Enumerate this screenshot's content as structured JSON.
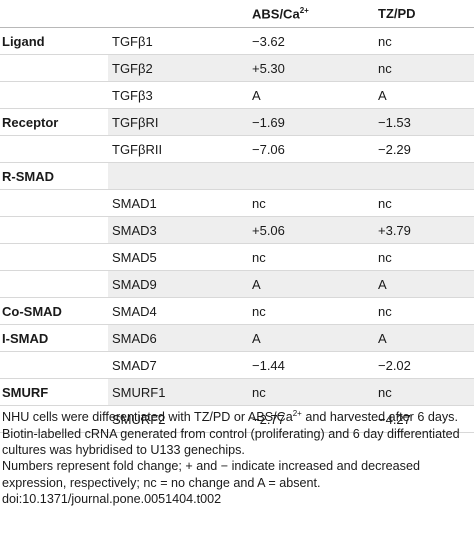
{
  "header": {
    "col_abs_text": "ABS/Ca",
    "col_abs_sup": "2+",
    "col_tz": "TZ/PD"
  },
  "rows": [
    {
      "group": "Ligand",
      "gene": "TGFβ1",
      "abs": "−3.62",
      "tz": "nc"
    },
    {
      "group": "",
      "gene": "TGFβ2",
      "abs": "+5.30",
      "tz": "nc"
    },
    {
      "group": "",
      "gene": "TGFβ3",
      "abs": "A",
      "tz": "A"
    },
    {
      "group": "Receptor",
      "gene": "TGFβRI",
      "abs": "−1.69",
      "tz": "−1.53"
    },
    {
      "group": "",
      "gene": "TGFβRII",
      "abs": "−7.06",
      "tz": "−2.29"
    },
    {
      "group": "R-SMAD",
      "gene": "",
      "abs": "",
      "tz": ""
    },
    {
      "group": "",
      "gene": "SMAD1",
      "abs": "nc",
      "tz": "nc"
    },
    {
      "group": "",
      "gene": "SMAD3",
      "abs": "+5.06",
      "tz": "+3.79"
    },
    {
      "group": "",
      "gene": "SMAD5",
      "abs": "nc",
      "tz": "nc"
    },
    {
      "group": "",
      "gene": "SMAD9",
      "abs": "A",
      "tz": "A"
    },
    {
      "group": "Co-SMAD",
      "gene": "SMAD4",
      "abs": "nc",
      "tz": "nc"
    },
    {
      "group": "I-SMAD",
      "gene": "SMAD6",
      "abs": "A",
      "tz": "A"
    },
    {
      "group": "",
      "gene": "SMAD7",
      "abs": "−1.44",
      "tz": "−2.02"
    },
    {
      "group": "SMURF",
      "gene": "SMURF1",
      "abs": "nc",
      "tz": "nc"
    },
    {
      "group": "",
      "gene": "SMURF2",
      "abs": "−2.77",
      "tz": "−4.27"
    }
  ],
  "notes": {
    "line1_a": "NHU cells were differentiated with TZ/PD or ABS/Ca",
    "line1_sup": "2+",
    "line1_b": " and harvested after 6 days. Biotin-labelled cRNA generated from control (proliferating) and 6 day differentiated cultures was hybridised to U133 genechips.",
    "line2": "Numbers represent fold change; + and − indicate increased and decreased expression, respectively; nc = no change and A = absent.",
    "doi": "doi:10.1371/journal.pone.0051404.t002"
  }
}
